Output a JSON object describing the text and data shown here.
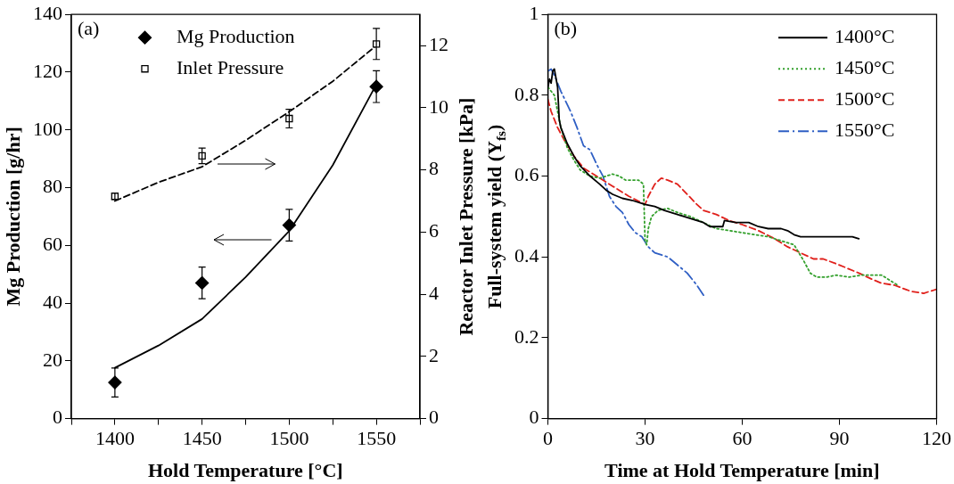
{
  "chart_data": [
    {
      "type": "scatter",
      "xlabel": "Hold Temperature [°C]",
      "ylabel": "Mg Production [g/hr]",
      "y2label": "Reactor Inlet Pressure [kPa]",
      "annotations": [
        "(a)"
      ],
      "xlim": [
        1375,
        1575
      ],
      "xticks": [
        {
          "value": 1375,
          "label": null
        },
        1400,
        {
          "value": 1425,
          "label": null
        },
        1450,
        {
          "value": 1475,
          "label": null
        },
        1500,
        {
          "value": 1525,
          "label": null
        },
        1550,
        {
          "value": 1575,
          "label": null
        }
      ],
      "ylim": [
        0,
        140
      ],
      "yticks": [
        0,
        20,
        40,
        60,
        80,
        100,
        120,
        140
      ],
      "y2lim": [
        0,
        13
      ],
      "y2ticks": [
        0,
        2,
        4,
        6,
        8,
        10,
        12
      ],
      "legend": "top left",
      "series": [
        {
          "name": "Mg Production",
          "color": "#000000",
          "marker": "diamond",
          "x": [
            1400,
            1450,
            1500,
            1550
          ],
          "values": [
            12.5,
            47,
            67,
            115
          ],
          "errors": [
            5,
            5.5,
            5.5,
            5.5
          ]
        },
        {
          "name": "Inlet Pressure",
          "color": "#000000",
          "marker": "square",
          "axis": "y2",
          "x": [
            1400,
            1450,
            1500,
            1550
          ],
          "values": [
            7.15,
            8.45,
            9.65,
            12.05
          ],
          "errors": [
            0.1,
            0.25,
            0.3,
            0.5
          ]
        },
        {
          "type": "line",
          "color": "#000000",
          "marker": "none",
          "line_style": "solid",
          "x": [
            1400,
            1425,
            1450,
            1475,
            1500,
            1525,
            1550
          ],
          "values": [
            17.6,
            25.3,
            34.5,
            49,
            65,
            87.8,
            115.8
          ]
        },
        {
          "type": "line",
          "color": "#000000",
          "marker": "none",
          "line_style": "dashed",
          "axis": "y2",
          "x": [
            1400,
            1425,
            1450,
            1475,
            1500,
            1525,
            1550
          ],
          "values": [
            7.0,
            7.6,
            8.1,
            8.95,
            9.87,
            10.85,
            12.0
          ]
        }
      ]
    },
    {
      "type": "line",
      "xlabel": "Time at Hold Temperature [min]",
      "ylabel": "Full-system yield (Y$_{fs}$)",
      "annotations": [
        "(b)"
      ],
      "xlim": [
        0,
        120
      ],
      "xticks": [
        0,
        30,
        60,
        90,
        120
      ],
      "ylim": [
        0,
        1
      ],
      "yticks": [
        0,
        0.2,
        0.4,
        0.6,
        0.8,
        1
      ],
      "legend": "top right",
      "marker": "none",
      "series": [
        {
          "name": "1400°C",
          "color": "#000000",
          "line_style": "solid",
          "x": [
            0,
            0.5,
            1,
            1.5,
            2,
            3,
            3.5,
            4,
            6,
            8,
            10,
            13,
            16,
            18,
            20,
            23,
            26,
            30,
            33,
            36,
            40,
            44,
            48,
            50,
            54,
            54.5,
            58,
            62,
            65,
            68,
            72,
            74,
            76,
            78,
            82,
            86,
            90,
            94,
            96
          ],
          "values": [
            0.82,
            0.84,
            0.83,
            0.86,
            0.865,
            0.82,
            0.74,
            0.72,
            0.68,
            0.65,
            0.625,
            0.6,
            0.58,
            0.565,
            0.555,
            0.545,
            0.54,
            0.53,
            0.525,
            0.515,
            0.505,
            0.495,
            0.485,
            0.475,
            0.475,
            0.49,
            0.485,
            0.485,
            0.475,
            0.47,
            0.47,
            0.465,
            0.455,
            0.45,
            0.45,
            0.45,
            0.45,
            0.45,
            0.445
          ]
        },
        {
          "name": "1450°C",
          "color": "#33a02c",
          "line_style": "dotted",
          "x": [
            0,
            2,
            4,
            6,
            8,
            10,
            13,
            16,
            18,
            20,
            22,
            24,
            28,
            29.5,
            30,
            30.5,
            31,
            32,
            34,
            37,
            40,
            44,
            48,
            52,
            56,
            60,
            64,
            68,
            72,
            76,
            79,
            81,
            83,
            86,
            89,
            93,
            97,
            103,
            106,
            108
          ],
          "values": [
            0.82,
            0.8,
            0.72,
            0.67,
            0.64,
            0.615,
            0.6,
            0.595,
            0.6,
            0.605,
            0.6,
            0.59,
            0.59,
            0.58,
            0.44,
            0.43,
            0.47,
            0.5,
            0.515,
            0.52,
            0.51,
            0.5,
            0.485,
            0.47,
            0.465,
            0.46,
            0.455,
            0.45,
            0.44,
            0.43,
            0.39,
            0.36,
            0.35,
            0.35,
            0.355,
            0.35,
            0.355,
            0.355,
            0.34,
            0.33
          ]
        },
        {
          "name": "1500°C",
          "color": "#e0201b",
          "line_style": "dashed",
          "x": [
            0,
            1,
            3,
            5,
            8,
            11,
            15,
            20,
            25,
            30,
            31,
            33,
            35,
            37,
            40,
            43,
            46,
            48,
            52,
            56,
            60,
            65,
            70,
            74,
            78,
            82,
            85,
            90,
            96,
            100,
            103,
            107,
            112,
            116,
            120
          ],
          "values": [
            0.79,
            0.76,
            0.72,
            0.69,
            0.65,
            0.62,
            0.6,
            0.575,
            0.55,
            0.53,
            0.55,
            0.58,
            0.595,
            0.59,
            0.58,
            0.555,
            0.53,
            0.515,
            0.505,
            0.49,
            0.48,
            0.465,
            0.445,
            0.425,
            0.41,
            0.395,
            0.395,
            0.38,
            0.36,
            0.345,
            0.335,
            0.33,
            0.315,
            0.31,
            0.32
          ]
        },
        {
          "name": "1550°C",
          "color": "#2f5fc4",
          "line_style": "dashdot",
          "x": [
            0,
            1,
            2,
            4,
            7,
            9,
            11,
            13,
            15,
            17,
            19,
            21,
            23,
            25,
            27,
            29,
            31,
            33,
            35,
            37,
            40,
            43,
            46,
            48.5
          ],
          "values": [
            0.86,
            0.865,
            0.85,
            0.81,
            0.76,
            0.72,
            0.675,
            0.665,
            0.63,
            0.6,
            0.55,
            0.525,
            0.51,
            0.48,
            0.46,
            0.45,
            0.425,
            0.41,
            0.405,
            0.4,
            0.38,
            0.36,
            0.33,
            0.3
          ]
        }
      ]
    }
  ]
}
